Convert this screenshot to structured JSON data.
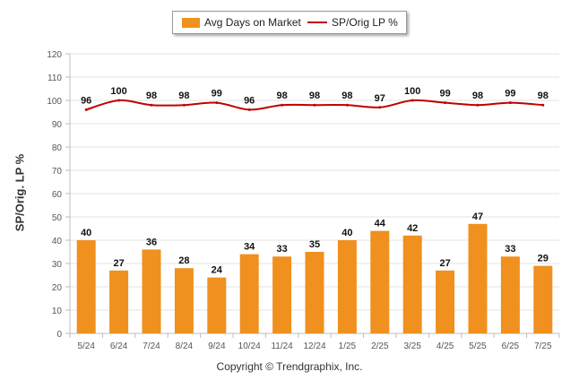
{
  "legend": {
    "bar_label": "Avg Days on Market",
    "line_label": "SP/Orig LP %"
  },
  "copyright": "Copyright © Trendgraphix, Inc.",
  "chart_data": {
    "type": "bar",
    "categories": [
      "5/24",
      "6/24",
      "7/24",
      "8/24",
      "9/24",
      "10/24",
      "11/24",
      "12/24",
      "1/25",
      "2/25",
      "3/25",
      "4/25",
      "5/25",
      "6/25",
      "7/25"
    ],
    "series": [
      {
        "name": "Avg Days on Market",
        "type": "bar",
        "color": "#f0901e",
        "values": [
          40,
          27,
          36,
          28,
          24,
          34,
          33,
          35,
          40,
          44,
          42,
          27,
          47,
          33,
          29
        ]
      },
      {
        "name": "SP/Orig LP %",
        "type": "line",
        "color": "#c00000",
        "values": [
          96,
          100,
          98,
          98,
          99,
          96,
          98,
          98,
          98,
          97,
          100,
          99,
          98,
          99,
          98
        ]
      }
    ],
    "ylabel": "SP/Orig. LP %",
    "ylim": [
      0,
      120
    ],
    "yticks": [
      0,
      10,
      20,
      30,
      40,
      50,
      60,
      70,
      80,
      90,
      100,
      110,
      120
    ],
    "grid": true,
    "legend_position": "top-center"
  }
}
